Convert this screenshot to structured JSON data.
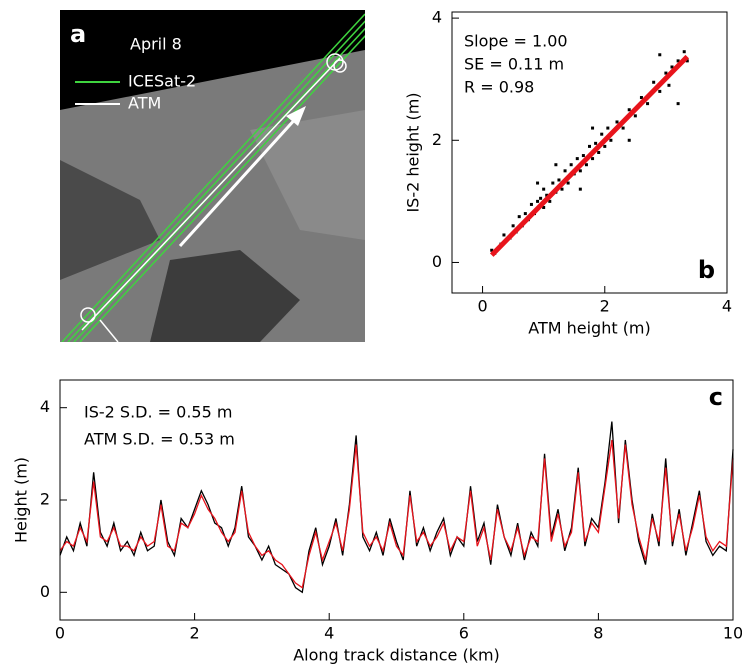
{
  "image_panel": {
    "label": "a",
    "date": "April 8",
    "legend": [
      "ICESat-2",
      "ATM"
    ]
  },
  "chart_data": [
    {
      "type": "scatter",
      "panel_label": "b",
      "x_label": "ATM height (m)",
      "y_label": "IS-2 height (m)",
      "xlim": [
        -0.5,
        4
      ],
      "ylim": [
        -0.5,
        4.1
      ],
      "xticks": [
        0,
        2,
        4
      ],
      "yticks": [
        0,
        2,
        4
      ],
      "color": "#000000",
      "x": [
        0.15,
        0.2,
        0.3,
        0.35,
        0.45,
        0.5,
        0.55,
        0.6,
        0.65,
        0.7,
        0.75,
        0.8,
        0.85,
        0.9,
        0.95,
        1.0,
        1.0,
        1.05,
        1.1,
        1.15,
        1.2,
        1.25,
        1.3,
        1.35,
        1.4,
        1.45,
        1.5,
        1.55,
        1.6,
        1.65,
        1.7,
        1.75,
        1.8,
        1.85,
        1.9,
        1.95,
        2.0,
        2.05,
        2.1,
        2.2,
        2.3,
        2.4,
        2.5,
        2.6,
        2.7,
        2.8,
        2.9,
        3.0,
        3.05,
        3.1,
        3.2,
        3.3,
        3.35,
        1.2,
        1.6,
        0.9,
        2.4,
        1.8,
        2.9,
        3.2
      ],
      "values": [
        0.2,
        0.15,
        0.3,
        0.45,
        0.4,
        0.6,
        0.5,
        0.75,
        0.6,
        0.8,
        0.7,
        0.95,
        0.8,
        1.0,
        1.05,
        0.9,
        1.2,
        1.1,
        1.0,
        1.3,
        1.15,
        1.35,
        1.2,
        1.5,
        1.3,
        1.6,
        1.45,
        1.7,
        1.5,
        1.75,
        1.6,
        1.9,
        1.7,
        1.95,
        1.8,
        2.1,
        1.9,
        2.2,
        2.0,
        2.3,
        2.2,
        2.5,
        2.4,
        2.7,
        2.6,
        2.95,
        2.8,
        3.1,
        2.9,
        3.2,
        3.3,
        3.45,
        3.3,
        1.6,
        1.2,
        1.3,
        2.0,
        2.2,
        3.4,
        2.6
      ],
      "fit": {
        "x": [
          0.15,
          3.35
        ],
        "values": [
          0.12,
          3.37
        ],
        "color": "#e8141c"
      },
      "annotations": [
        {
          "text": "Slope =  1.00",
          "color": "#e8141c"
        },
        {
          "text": "SE = 0.11 m",
          "color": "#e8141c"
        },
        {
          "text": "R =  0.98",
          "color": "#e8141c"
        }
      ]
    },
    {
      "type": "line",
      "panel_label": "c",
      "x_label": "Along track distance (km)",
      "y_label": "Height (m)",
      "xlim": [
        0,
        10
      ],
      "ylim": [
        -0.6,
        4.6
      ],
      "xticks": [
        0,
        2,
        4,
        6,
        8,
        10
      ],
      "yticks": [
        0,
        2,
        4
      ],
      "x": [
        0,
        0.1,
        0.2,
        0.3,
        0.4,
        0.5,
        0.6,
        0.7,
        0.8,
        0.9,
        1,
        1.1,
        1.2,
        1.3,
        1.4,
        1.5,
        1.6,
        1.7,
        1.8,
        1.9,
        2,
        2.1,
        2.2,
        2.3,
        2.4,
        2.5,
        2.6,
        2.7,
        2.8,
        2.9,
        3,
        3.1,
        3.2,
        3.3,
        3.4,
        3.5,
        3.6,
        3.7,
        3.8,
        3.9,
        4,
        4.1,
        4.2,
        4.3,
        4.4,
        4.5,
        4.6,
        4.7,
        4.8,
        4.9,
        5,
        5.1,
        5.2,
        5.3,
        5.4,
        5.5,
        5.6,
        5.7,
        5.8,
        5.9,
        6,
        6.1,
        6.2,
        6.3,
        6.4,
        6.5,
        6.6,
        6.7,
        6.8,
        6.9,
        7,
        7.1,
        7.2,
        7.3,
        7.4,
        7.5,
        7.6,
        7.7,
        7.8,
        7.9,
        8,
        8.1,
        8.2,
        8.3,
        8.4,
        8.5,
        8.6,
        8.7,
        8.8,
        8.9,
        9,
        9.1,
        9.2,
        9.3,
        9.4,
        9.5,
        9.6,
        9.7,
        9.8,
        9.9,
        10
      ],
      "series": [
        {
          "color": "#000000",
          "values": [
            0.8,
            1.2,
            0.9,
            1.5,
            1.0,
            2.6,
            1.3,
            1.0,
            1.5,
            0.9,
            1.1,
            0.8,
            1.3,
            0.9,
            1.0,
            2.0,
            1.1,
            0.8,
            1.6,
            1.4,
            1.8,
            2.2,
            1.9,
            1.5,
            1.4,
            1.0,
            1.4,
            2.3,
            1.2,
            1.0,
            0.7,
            1.0,
            0.6,
            0.5,
            0.4,
            0.1,
            0.0,
            0.9,
            1.4,
            0.6,
            1.0,
            1.6,
            0.8,
            1.9,
            3.4,
            1.2,
            0.9,
            1.3,
            0.8,
            1.6,
            1.1,
            0.7,
            2.2,
            1.0,
            1.4,
            0.9,
            1.3,
            1.6,
            0.8,
            1.2,
            1.0,
            2.3,
            1.1,
            1.5,
            0.6,
            1.9,
            1.2,
            0.8,
            1.5,
            0.7,
            1.3,
            1.0,
            3.0,
            1.2,
            1.8,
            0.9,
            1.4,
            2.7,
            1.0,
            1.6,
            1.4,
            2.4,
            3.7,
            1.5,
            3.3,
            2.0,
            1.1,
            0.6,
            1.7,
            1.0,
            2.9,
            1.0,
            1.8,
            0.8,
            1.5,
            2.2,
            1.1,
            0.8,
            1.0,
            0.9,
            3.1
          ]
        },
        {
          "color": "#e8141c",
          "values": [
            0.9,
            1.1,
            1.0,
            1.4,
            1.1,
            2.4,
            1.2,
            1.1,
            1.4,
            1.0,
            1.0,
            0.9,
            1.2,
            1.0,
            1.1,
            1.9,
            1.0,
            0.9,
            1.5,
            1.4,
            1.7,
            2.1,
            1.8,
            1.6,
            1.3,
            1.1,
            1.3,
            2.2,
            1.3,
            1.0,
            0.8,
            0.9,
            0.7,
            0.6,
            0.4,
            0.2,
            0.1,
            0.8,
            1.3,
            0.7,
            1.1,
            1.5,
            0.9,
            1.8,
            3.2,
            1.3,
            1.0,
            1.2,
            0.9,
            1.5,
            1.0,
            0.8,
            2.1,
            1.1,
            1.3,
            1.0,
            1.2,
            1.5,
            0.9,
            1.2,
            1.1,
            2.2,
            1.0,
            1.4,
            0.7,
            1.8,
            1.2,
            0.9,
            1.4,
            0.8,
            1.2,
            1.1,
            2.9,
            1.1,
            1.7,
            1.0,
            1.3,
            2.6,
            1.1,
            1.5,
            1.3,
            2.3,
            3.3,
            1.6,
            3.2,
            1.9,
            1.2,
            0.7,
            1.6,
            1.1,
            2.7,
            1.1,
            1.7,
            0.9,
            1.4,
            2.1,
            1.2,
            0.9,
            1.1,
            1.0,
            2.9
          ]
        }
      ],
      "annotations": [
        {
          "text": "IS-2 S.D. = 0.55 m",
          "color": "#000000"
        },
        {
          "text": "ATM S.D. = 0.53 m",
          "color": "#e8141c"
        }
      ]
    }
  ]
}
